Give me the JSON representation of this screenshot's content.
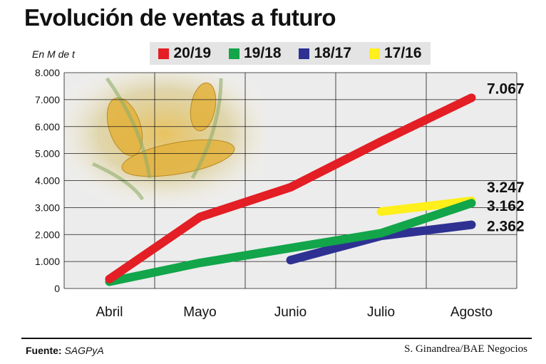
{
  "title": "Evolución de ventas a futuro",
  "footer": {
    "source_label": "Fuente:",
    "source_value": "SAGPyA",
    "credit": "S. Ginandrea/BAE Negocios"
  },
  "chart_data": {
    "type": "line",
    "ylabel": "En M de t",
    "xlabel": "",
    "categories": [
      "Abril",
      "Mayo",
      "Junio",
      "Julio",
      "Agosto"
    ],
    "ylim": [
      0,
      8000
    ],
    "yticks": [
      0,
      1000,
      2000,
      3000,
      4000,
      5000,
      6000,
      7000,
      8000
    ],
    "ytick_labels": [
      "0",
      "1.000",
      "2.000",
      "3.000",
      "4.000",
      "5.000",
      "6.000",
      "7.000",
      "8.000"
    ],
    "grid": true,
    "legend_position": "top",
    "series": [
      {
        "name": "20/19",
        "color": "#e31e24",
        "values": [
          350,
          2650,
          3750,
          5450,
          7067
        ]
      },
      {
        "name": "19/18",
        "color": "#12a54a",
        "values": [
          250,
          950,
          1500,
          2050,
          3162
        ]
      },
      {
        "name": "18/17",
        "color": "#2e3192",
        "values": [
          null,
          null,
          1050,
          1950,
          2362
        ]
      },
      {
        "name": "17/16",
        "color": "#ffef1a",
        "values": [
          null,
          null,
          null,
          2850,
          3247
        ]
      }
    ],
    "annotations": [
      {
        "text": "7.067",
        "series": "20/19"
      },
      {
        "text": "3.247",
        "series": "17/16"
      },
      {
        "text": "3.162",
        "series": "19/18"
      },
      {
        "text": "2.362",
        "series": "18/17"
      }
    ]
  }
}
